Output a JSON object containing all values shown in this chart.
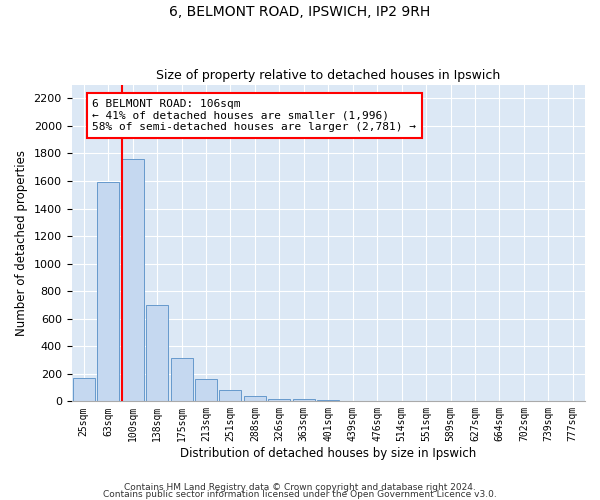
{
  "title": "6, BELMONT ROAD, IPSWICH, IP2 9RH",
  "subtitle": "Size of property relative to detached houses in Ipswich",
  "xlabel": "Distribution of detached houses by size in Ipswich",
  "ylabel": "Number of detached properties",
  "categories": [
    "25sqm",
    "63sqm",
    "100sqm",
    "138sqm",
    "175sqm",
    "213sqm",
    "251sqm",
    "288sqm",
    "326sqm",
    "363sqm",
    "401sqm",
    "439sqm",
    "476sqm",
    "514sqm",
    "551sqm",
    "589sqm",
    "627sqm",
    "664sqm",
    "702sqm",
    "739sqm",
    "777sqm"
  ],
  "values": [
    170,
    1590,
    1760,
    700,
    315,
    160,
    80,
    40,
    20,
    15,
    10,
    0,
    0,
    0,
    0,
    0,
    0,
    0,
    0,
    0,
    0
  ],
  "bar_color": "#c5d8f0",
  "bar_edge_color": "#6699cc",
  "vline_color": "red",
  "annotation_text": "6 BELMONT ROAD: 106sqm\n← 41% of detached houses are smaller (1,996)\n58% of semi-detached houses are larger (2,781) →",
  "ylim": [
    0,
    2300
  ],
  "yticks": [
    0,
    200,
    400,
    600,
    800,
    1000,
    1200,
    1400,
    1600,
    1800,
    2000,
    2200
  ],
  "plot_bg_color": "#dce8f5",
  "footer_line1": "Contains HM Land Registry data © Crown copyright and database right 2024.",
  "footer_line2": "Contains public sector information licensed under the Open Government Licence v3.0.",
  "title_fontsize": 10,
  "subtitle_fontsize": 9,
  "annotation_fontsize": 8,
  "xlabel_fontsize": 8.5,
  "ylabel_fontsize": 8.5,
  "footer_fontsize": 6.5
}
